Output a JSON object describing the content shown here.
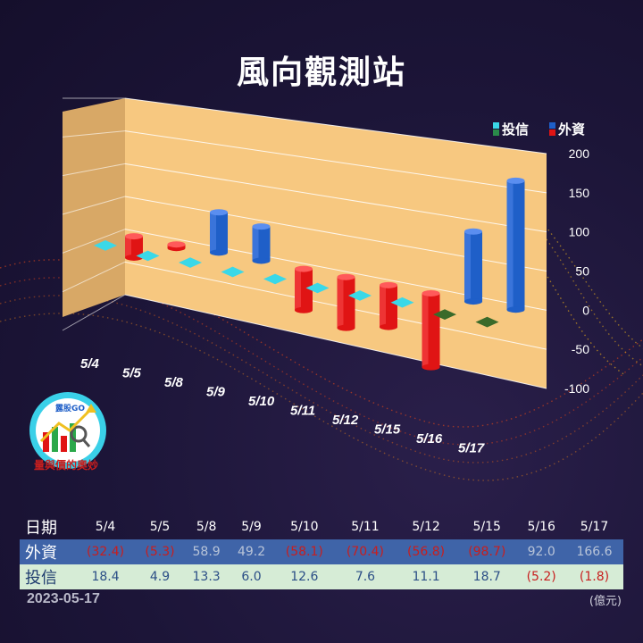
{
  "title": "風向觀測站",
  "legend": {
    "trust_label": "投信",
    "foreign_label": "外資"
  },
  "colors": {
    "foreign": "#1f5fc8",
    "foreign_neg": "#e01414",
    "trust": "#3ad8e8",
    "trust_neg": "#3a6a2a",
    "wall": "#f6c27a",
    "background": "#1c1538"
  },
  "chart_data": {
    "type": "bar",
    "title": "風向觀測站",
    "categories": [
      "5/4",
      "5/5",
      "5/8",
      "5/9",
      "5/10",
      "5/11",
      "5/12",
      "5/15",
      "5/16",
      "5/17"
    ],
    "series": [
      {
        "name": "投信",
        "values": [
          18.4,
          4.9,
          13.3,
          6.0,
          12.6,
          7.6,
          11.1,
          18.7,
          -5.2,
          -1.8
        ]
      },
      {
        "name": "外資",
        "values": [
          -32.4,
          -5.3,
          58.9,
          49.2,
          -58.1,
          -70.4,
          -56.8,
          -98.7,
          92.0,
          166.6
        ]
      }
    ],
    "ylim": [
      -100,
      200
    ],
    "yticks": [
      200,
      150,
      100,
      50,
      0,
      -50,
      -100
    ],
    "grid": true,
    "legend_position": "top-right"
  },
  "table": {
    "header_label": "日期",
    "foreign_label": "外資",
    "trust_label": "投信",
    "foreign_text": [
      "(32.4)",
      "(5.3)",
      "58.9",
      "49.2",
      "(58.1)",
      "(70.4)",
      "(56.8)",
      "(98.7)",
      "92.0",
      "166.6"
    ],
    "trust_text": [
      "18.4",
      "4.9",
      "13.3",
      "6.0",
      "12.6",
      "7.6",
      "11.1",
      "18.7",
      "(5.2)",
      "(1.8)"
    ]
  },
  "footer": {
    "date": "2023-05-17",
    "unit": "(億元)"
  },
  "logo": {
    "badge": "露股GO",
    "caption": "量與價的奧妙"
  }
}
